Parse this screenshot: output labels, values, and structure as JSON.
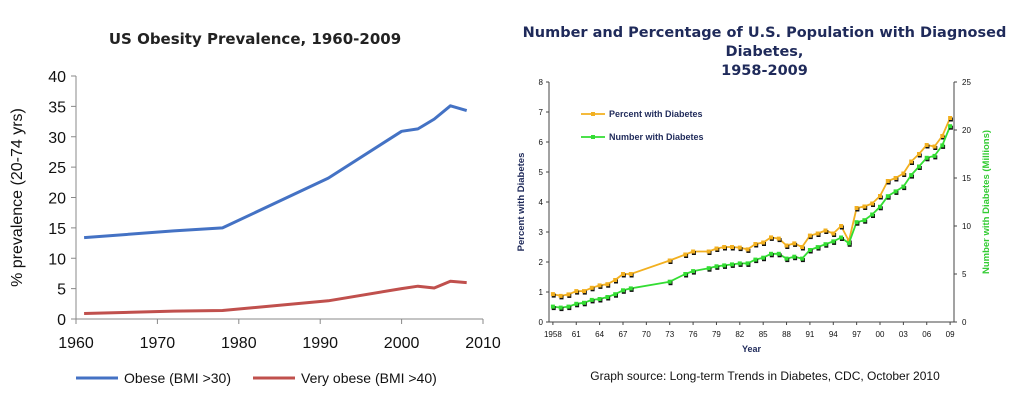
{
  "chart_data": [
    {
      "type": "line",
      "title": "US Obesity Prevalence, 1960-2009",
      "xlabel": "",
      "ylabel": "% prevalence (20-74 yrs)",
      "xlim": [
        1960,
        2010
      ],
      "ylim": [
        0,
        40
      ],
      "x_ticks": [
        "1960",
        "1970",
        "1980",
        "1990",
        "2000",
        "2010"
      ],
      "y_ticks": [
        "0",
        "5",
        "10",
        "15",
        "20",
        "25",
        "30",
        "35",
        "40"
      ],
      "legend_position": "bottom",
      "series": [
        {
          "name": "Obese (BMI >30)",
          "color": "#4472c4",
          "points": [
            [
              1961,
              13.4
            ],
            [
              1972,
              14.5
            ],
            [
              1978,
              15.0
            ],
            [
              1991,
              23.2
            ],
            [
              2000,
              30.9
            ],
            [
              2002,
              31.3
            ],
            [
              2004,
              32.9
            ],
            [
              2006,
              35.1
            ],
            [
              2008,
              34.3
            ]
          ]
        },
        {
          "name": "Very obese (BMI >40)",
          "color": "#c0504d",
          "points": [
            [
              1961,
              0.9
            ],
            [
              1972,
              1.3
            ],
            [
              1978,
              1.4
            ],
            [
              1991,
              3.0
            ],
            [
              2000,
              5.0
            ],
            [
              2002,
              5.4
            ],
            [
              2004,
              5.1
            ],
            [
              2006,
              6.2
            ],
            [
              2008,
              6.0
            ]
          ]
        }
      ]
    },
    {
      "type": "line",
      "title": "Number and Percentage of U.S. Population with Diagnosed Diabetes, 1958-2009",
      "title_lines": [
        "Number and Percentage of U.S. Population with Diagnosed Diabetes,",
        "1958-2009"
      ],
      "xlabel": "Year",
      "ylabel": "Percent with Diabetes",
      "y2label": "Number with Diabetes (Millions)",
      "xlim": [
        1957.5,
        2009.5
      ],
      "ylim": [
        0,
        8
      ],
      "y2lim": [
        0,
        25
      ],
      "x_ticks": [
        "1958",
        "61",
        "64",
        "67",
        "70",
        "73",
        "76",
        "79",
        "82",
        "85",
        "88",
        "91",
        "94",
        "97",
        "00",
        "03",
        "06",
        "09"
      ],
      "y_ticks": [
        "0",
        "1",
        "2",
        "3",
        "4",
        "5",
        "6",
        "7",
        "8"
      ],
      "y2_ticks": [
        "0",
        "5",
        "10",
        "15",
        "20",
        "25"
      ],
      "legend_position": "top-left",
      "source": "Graph source: Long-term Trends in Diabetes, CDC, October 2010",
      "series": [
        {
          "name": "Percent with Diabetes",
          "axis": "left",
          "color": "#f2b020",
          "x": [
            1958,
            1959,
            1960,
            1961,
            1962,
            1963,
            1964,
            1965,
            1966,
            1967,
            1968,
            1973,
            1975,
            1976,
            1978,
            1979,
            1980,
            1981,
            1982,
            1983,
            1984,
            1985,
            1986,
            1987,
            1988,
            1989,
            1990,
            1991,
            1992,
            1993,
            1994,
            1995,
            1996,
            1997,
            1998,
            1999,
            2000,
            2001,
            2002,
            2003,
            2004,
            2005,
            2006,
            2007,
            2008,
            2009
          ],
          "values": [
            0.93,
            0.87,
            0.92,
            1.03,
            1.03,
            1.14,
            1.22,
            1.26,
            1.4,
            1.6,
            1.6,
            2.05,
            2.25,
            2.35,
            2.35,
            2.45,
            2.5,
            2.5,
            2.48,
            2.42,
            2.6,
            2.65,
            2.82,
            2.78,
            2.55,
            2.62,
            2.5,
            2.88,
            2.95,
            3.05,
            2.95,
            3.2,
            2.7,
            3.8,
            3.85,
            3.95,
            4.2,
            4.7,
            4.8,
            4.95,
            5.35,
            5.6,
            5.9,
            5.85,
            6.2,
            6.8
          ]
        },
        {
          "name": "Number with Diabetes",
          "axis": "right",
          "color": "#33dd33",
          "x": [
            1958,
            1959,
            1960,
            1961,
            1962,
            1963,
            1964,
            1965,
            1966,
            1967,
            1968,
            1973,
            1975,
            1976,
            1978,
            1979,
            1980,
            1981,
            1982,
            1983,
            1984,
            1985,
            1986,
            1987,
            1988,
            1989,
            1990,
            1991,
            1992,
            1993,
            1994,
            1995,
            1996,
            1997,
            1998,
            1999,
            2000,
            2001,
            2002,
            2003,
            2004,
            2005,
            2006,
            2007,
            2008,
            2009
          ],
          "values": [
            1.6,
            1.5,
            1.6,
            1.9,
            2.0,
            2.3,
            2.4,
            2.6,
            2.9,
            3.3,
            3.5,
            4.2,
            5.0,
            5.3,
            5.6,
            5.8,
            5.9,
            6.0,
            6.1,
            6.1,
            6.5,
            6.7,
            7.1,
            7.1,
            6.6,
            6.8,
            6.6,
            7.5,
            7.8,
            8.1,
            8.4,
            8.8,
            8.2,
            10.4,
            10.6,
            11.2,
            12.0,
            13.1,
            13.6,
            14.1,
            15.3,
            16.2,
            17.1,
            17.3,
            18.4,
            20.4
          ]
        }
      ]
    }
  ]
}
